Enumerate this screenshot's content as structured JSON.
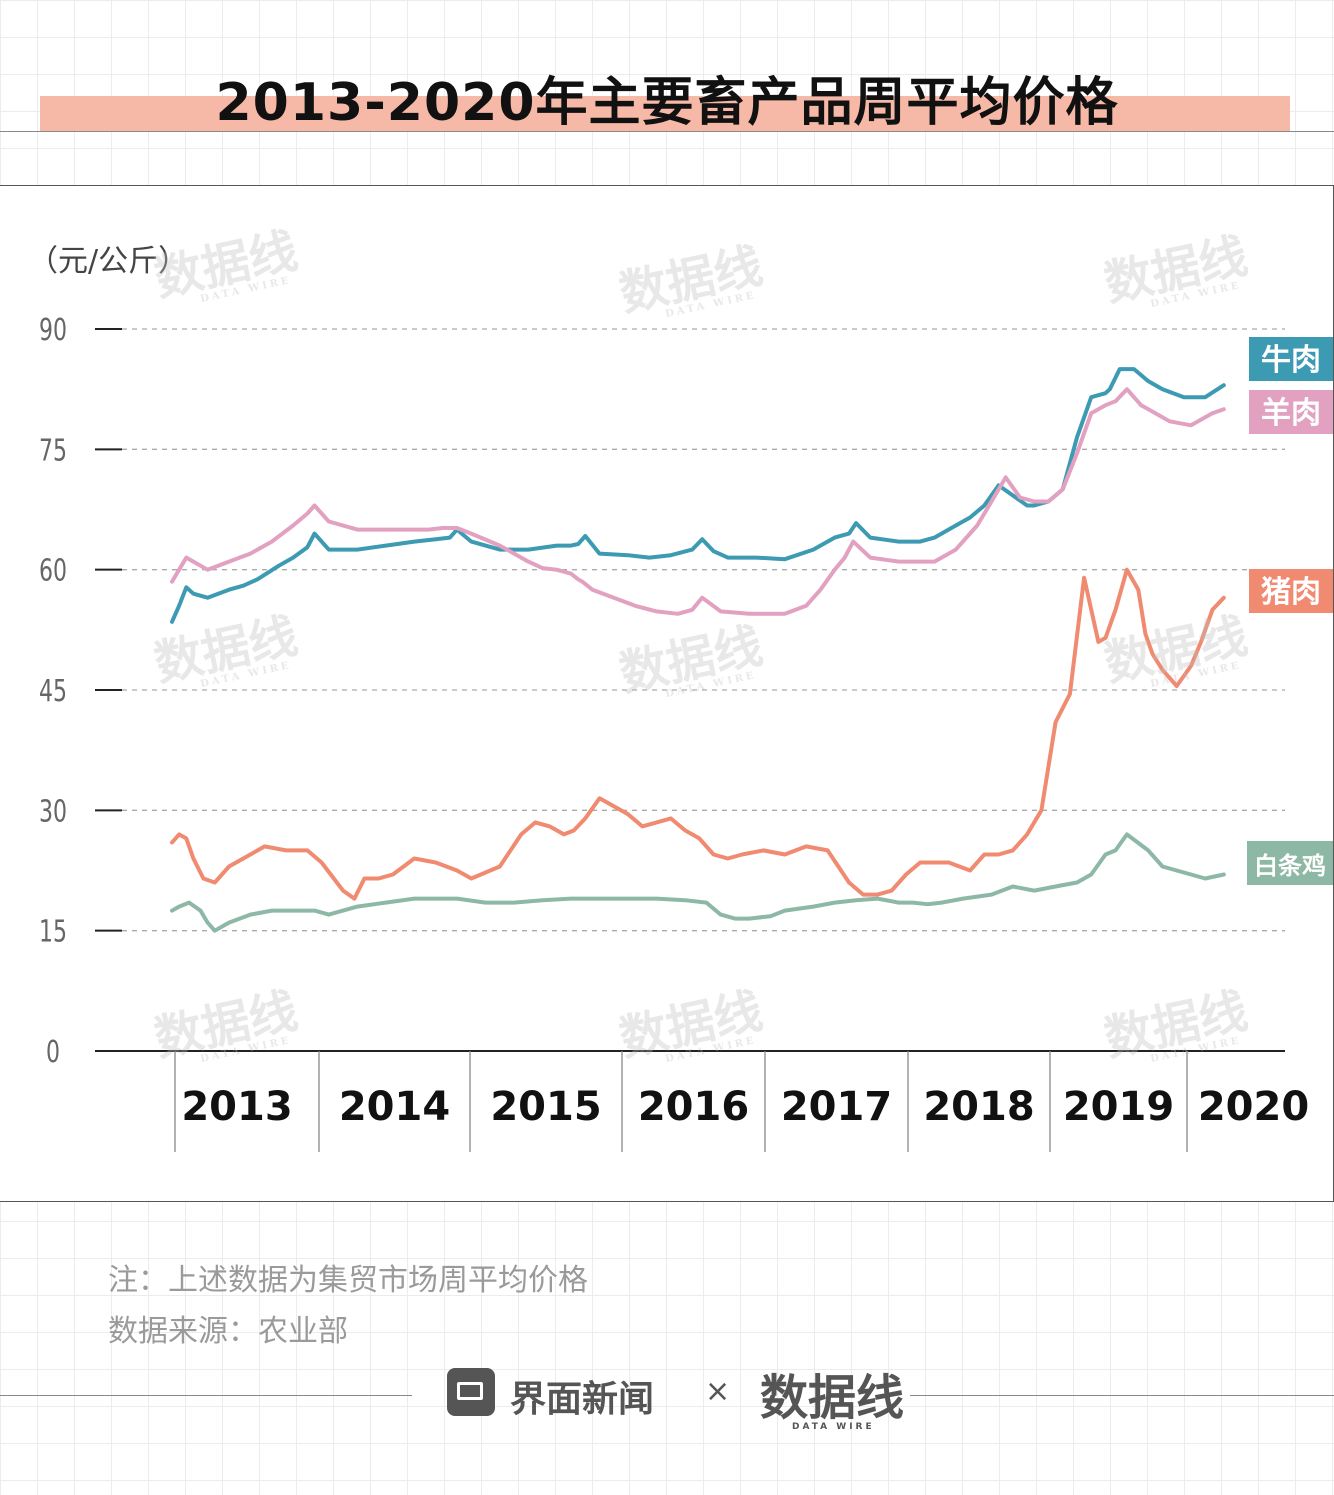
{
  "title": "2013-2020年主要畜产品周平均价格",
  "unit_label": "（元/公斤）",
  "notes": {
    "line1": "注：上述数据为集贸市场周平均价格",
    "line2": "数据来源：农业部"
  },
  "footer": {
    "brand": "界面新闻",
    "separator": "×",
    "partner": "数据线",
    "partner_sub": "DATA WIRE"
  },
  "watermark": {
    "text": "数据线",
    "sub": "DATA WIRE"
  },
  "colors": {
    "beef": "#3d9ab3",
    "mutton": "#e2a1c0",
    "pork": "#f08a70",
    "chicken": "#8db8a6",
    "title_band": "#f6b9a7"
  },
  "chart_data": {
    "type": "line",
    "title": "2013-2020年主要畜产品周平均价格",
    "ylabel": "（元/公斤）",
    "ylim": [
      0,
      90
    ],
    "yticks": [
      0,
      15,
      30,
      45,
      60,
      75,
      90
    ],
    "xlim": [
      2013.0,
      2020.55
    ],
    "years": [
      "2013",
      "2014",
      "2015",
      "2016",
      "2017",
      "2018",
      "2019",
      "2020"
    ],
    "grid": "horizontal dashed",
    "legend": "labels at line ends (right)",
    "series": [
      {
        "name": "牛肉",
        "color": "#3d9ab3",
        "x": [
          2013.0,
          2013.05,
          2013.1,
          2013.15,
          2013.25,
          2013.4,
          2013.5,
          2013.6,
          2013.75,
          2013.85,
          2013.95,
          2014.0,
          2014.1,
          2014.3,
          2014.5,
          2014.7,
          2014.85,
          2014.95,
          2015.0,
          2015.1,
          2015.3,
          2015.5,
          2015.7,
          2015.8,
          2015.85,
          2015.9,
          2016.0,
          2016.2,
          2016.35,
          2016.5,
          2016.65,
          2016.72,
          2016.8,
          2016.9,
          2017.1,
          2017.3,
          2017.5,
          2017.65,
          2017.75,
          2017.8,
          2017.9,
          2018.1,
          2018.25,
          2018.35,
          2018.5,
          2018.6,
          2018.7,
          2018.8,
          2019.0,
          2019.05,
          2019.15,
          2019.25,
          2019.35,
          2019.45,
          2019.55,
          2019.58,
          2019.65,
          2019.75,
          2019.85,
          2019.95,
          2020.1,
          2020.25,
          2020.38
        ],
        "y": [
          53.5,
          55.5,
          57.8,
          57.0,
          56.5,
          57.5,
          58.0,
          58.8,
          60.5,
          61.5,
          62.8,
          64.5,
          62.5,
          62.5,
          63.0,
          63.5,
          63.8,
          64.0,
          65.0,
          63.5,
          62.5,
          62.5,
          63.0,
          63.0,
          63.2,
          64.2,
          62.0,
          61.8,
          61.5,
          61.8,
          62.5,
          63.8,
          62.3,
          61.5,
          61.5,
          61.3,
          62.5,
          64.0,
          64.5,
          65.8,
          64.0,
          63.5,
          63.5,
          64.0,
          65.5,
          66.5,
          68.0,
          70.5,
          68.0,
          68.0,
          68.5,
          70.0,
          76.5,
          81.5,
          82.0,
          82.5,
          85.0,
          85.0,
          83.5,
          82.5,
          81.5,
          81.5,
          83.0
        ]
      },
      {
        "name": "羊肉",
        "color": "#e2a1c0",
        "x": [
          2013.0,
          2013.05,
          2013.1,
          2013.15,
          2013.25,
          2013.4,
          2013.55,
          2013.7,
          2013.85,
          2013.95,
          2014.0,
          2014.1,
          2014.3,
          2014.5,
          2014.7,
          2014.8,
          2014.9,
          2015.0,
          2015.1,
          2015.3,
          2015.5,
          2015.6,
          2015.7,
          2015.8,
          2015.85,
          2015.88,
          2015.95,
          2016.1,
          2016.25,
          2016.4,
          2016.55,
          2016.65,
          2016.72,
          2016.85,
          2017.05,
          2017.2,
          2017.3,
          2017.45,
          2017.55,
          2017.65,
          2017.72,
          2017.78,
          2017.9,
          2018.1,
          2018.25,
          2018.35,
          2018.5,
          2018.65,
          2018.75,
          2018.85,
          2018.95,
          2019.05,
          2019.15,
          2019.25,
          2019.35,
          2019.45,
          2019.55,
          2019.62,
          2019.7,
          2019.8,
          2019.9,
          2020.0,
          2020.15,
          2020.3,
          2020.38
        ],
        "y": [
          58.5,
          60.0,
          61.5,
          61.0,
          60.0,
          61.0,
          62.0,
          63.5,
          65.5,
          67.0,
          68.0,
          66.0,
          65.0,
          65.0,
          65.0,
          65.0,
          65.2,
          65.2,
          64.5,
          63.0,
          61.0,
          60.2,
          60.0,
          59.5,
          58.8,
          58.5,
          57.5,
          56.5,
          55.5,
          54.8,
          54.5,
          55.0,
          56.5,
          54.8,
          54.5,
          54.5,
          54.5,
          55.5,
          57.5,
          60.0,
          61.5,
          63.5,
          61.5,
          61.0,
          61.0,
          61.0,
          62.5,
          65.5,
          68.5,
          71.5,
          69.0,
          68.5,
          68.5,
          70.0,
          74.5,
          79.5,
          80.5,
          81.0,
          82.5,
          80.5,
          79.5,
          78.5,
          78.0,
          79.5,
          80.0
        ]
      },
      {
        "name": "猪肉",
        "color": "#f08a70",
        "x": [
          2013.0,
          2013.05,
          2013.1,
          2013.15,
          2013.22,
          2013.3,
          2013.4,
          2013.55,
          2013.65,
          2013.8,
          2013.95,
          2014.05,
          2014.2,
          2014.28,
          2014.35,
          2014.45,
          2014.55,
          2014.7,
          2014.85,
          2015.0,
          2015.1,
          2015.3,
          2015.45,
          2015.55,
          2015.65,
          2015.75,
          2015.82,
          2015.9,
          2016.0,
          2016.1,
          2016.2,
          2016.3,
          2016.4,
          2016.5,
          2016.6,
          2016.7,
          2016.8,
          2016.9,
          2017.0,
          2017.15,
          2017.3,
          2017.45,
          2017.6,
          2017.75,
          2017.85,
          2017.95,
          2018.05,
          2018.15,
          2018.25,
          2018.35,
          2018.45,
          2018.6,
          2018.7,
          2018.8,
          2018.9,
          2019.0,
          2019.1,
          2019.2,
          2019.3,
          2019.4,
          2019.5,
          2019.55,
          2019.62,
          2019.7,
          2019.78,
          2019.83,
          2019.88,
          2019.95,
          2020.05,
          2020.15,
          2020.22,
          2020.3,
          2020.38
        ],
        "y": [
          26.0,
          27.0,
          26.5,
          24.0,
          21.5,
          21.0,
          23.0,
          24.5,
          25.5,
          25.0,
          25.0,
          23.5,
          20.0,
          19.0,
          21.5,
          21.5,
          22.0,
          24.0,
          23.5,
          22.5,
          21.5,
          23.0,
          27.0,
          28.5,
          28.0,
          27.0,
          27.5,
          29.0,
          31.5,
          30.5,
          29.5,
          28.0,
          28.5,
          29.0,
          27.5,
          26.5,
          24.5,
          24.0,
          24.5,
          25.0,
          24.5,
          25.5,
          25.0,
          21.0,
          19.5,
          19.5,
          20.0,
          22.0,
          23.5,
          23.5,
          23.5,
          22.5,
          24.5,
          24.5,
          25.0,
          27.0,
          30.0,
          41.0,
          44.5,
          59.0,
          51.0,
          51.5,
          55.0,
          60.0,
          57.5,
          52.0,
          49.5,
          47.5,
          45.5,
          48.0,
          51.0,
          55.0,
          56.5
        ]
      },
      {
        "name": "白条鸡",
        "color": "#8db8a6",
        "x": [
          2013.0,
          2013.05,
          2013.12,
          2013.2,
          2013.25,
          2013.3,
          2013.4,
          2013.55,
          2013.7,
          2013.85,
          2014.0,
          2014.1,
          2014.2,
          2014.3,
          2014.5,
          2014.7,
          2014.9,
          2015.0,
          2015.2,
          2015.4,
          2015.6,
          2015.8,
          2016.0,
          2016.2,
          2016.4,
          2016.6,
          2016.75,
          2016.85,
          2016.95,
          2017.05,
          2017.2,
          2017.3,
          2017.5,
          2017.65,
          2017.8,
          2017.95,
          2018.1,
          2018.2,
          2018.3,
          2018.4,
          2018.55,
          2018.75,
          2018.9,
          2019.05,
          2019.2,
          2019.35,
          2019.45,
          2019.55,
          2019.62,
          2019.7,
          2019.85,
          2019.95,
          2020.05,
          2020.15,
          2020.25,
          2020.38
        ],
        "y": [
          17.5,
          18.0,
          18.5,
          17.5,
          16.0,
          15.0,
          16.0,
          17.0,
          17.5,
          17.5,
          17.5,
          17.0,
          17.5,
          18.0,
          18.5,
          19.0,
          19.0,
          19.0,
          18.5,
          18.5,
          18.8,
          19.0,
          19.0,
          19.0,
          19.0,
          18.8,
          18.5,
          17.0,
          16.5,
          16.5,
          16.8,
          17.5,
          18.0,
          18.5,
          18.8,
          19.0,
          18.5,
          18.5,
          18.3,
          18.5,
          19.0,
          19.5,
          20.5,
          20.0,
          20.5,
          21.0,
          22.0,
          24.5,
          25.0,
          27.0,
          25.0,
          23.0,
          22.5,
          22.0,
          21.5,
          22.0
        ]
      }
    ]
  }
}
